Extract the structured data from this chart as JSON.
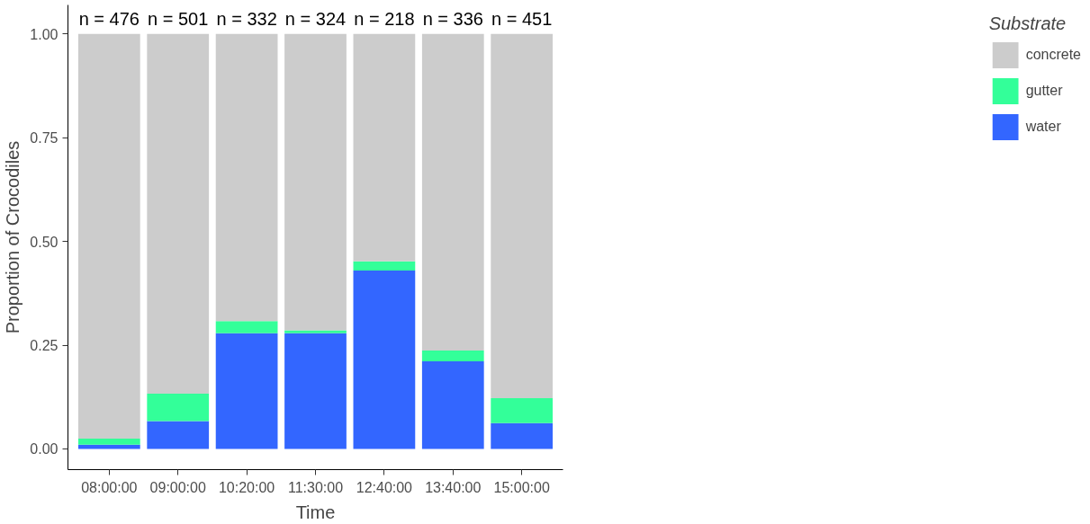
{
  "chart_data": {
    "type": "bar",
    "stacked": true,
    "xlabel": "Time",
    "ylabel": "Proportion of Crocodiles",
    "legend_title": "Substrate",
    "legend": "right",
    "categories": [
      "08:00:00",
      "09:00:00",
      "10:20:00",
      "11:30:00",
      "12:40:00",
      "13:40:00",
      "15:00:00"
    ],
    "series": [
      {
        "name": "water",
        "color": "#3366ff",
        "values": [
          0.01,
          0.067,
          0.279,
          0.279,
          0.43,
          0.211,
          0.062
        ]
      },
      {
        "name": "gutter",
        "color": "#33ff99",
        "values": [
          0.015,
          0.066,
          0.029,
          0.007,
          0.022,
          0.026,
          0.06
        ]
      },
      {
        "name": "concrete",
        "color": "#cccccc",
        "values": [
          0.975,
          0.867,
          0.692,
          0.714,
          0.548,
          0.763,
          0.878
        ]
      }
    ],
    "ylim": [
      -0.05,
      1.07
    ],
    "yticks": [
      {
        "value": 0,
        "label": "0.00"
      },
      {
        "value": 0.25,
        "label": "0.25"
      },
      {
        "value": 0.5,
        "label": "0.50"
      },
      {
        "value": 0.75,
        "label": "0.75"
      },
      {
        "value": 1,
        "label": "1.00"
      }
    ],
    "grid": false,
    "annotations": [
      {
        "text": "n = 476",
        "x": "08:00:00",
        "y": 1
      },
      {
        "text": "n = 501",
        "x": "09:00:00",
        "y": 1
      },
      {
        "text": "n = 332",
        "x": "10:20:00",
        "y": 1
      },
      {
        "text": "n = 324",
        "x": "11:30:00",
        "y": 1
      },
      {
        "text": "n = 218",
        "x": "12:40:00",
        "y": 1
      },
      {
        "text": "n = 336",
        "x": "13:40:00",
        "y": 1
      },
      {
        "text": "n = 451",
        "x": "15:00:00",
        "y": 1
      }
    ]
  }
}
